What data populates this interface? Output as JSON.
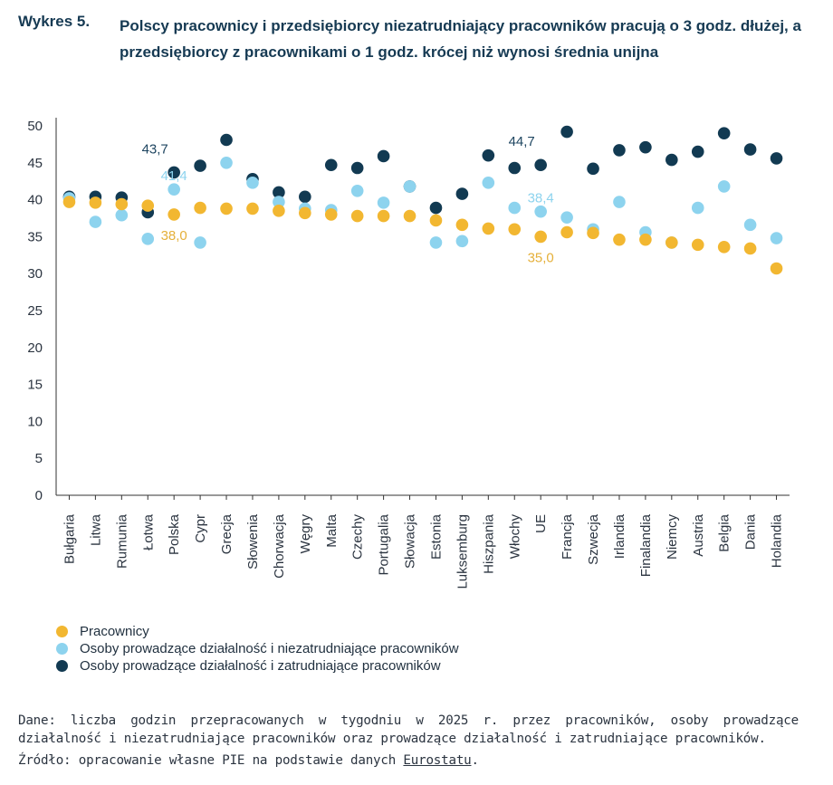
{
  "title": {
    "label": "Wykres 5.",
    "text": "Polscy pracownicy i przedsiębiorcy niezatrudniający pracowników pracują o 3 godz. dłużej, a przedsiębiorcy z pracownikami o 1 godz. krócej niż wynosi średnia unijna"
  },
  "chart_data": {
    "type": "scatter",
    "categories": [
      "Bułgaria",
      "Litwa",
      "Rumunia",
      "Łotwa",
      "Polska",
      "Cypr",
      "Grecja",
      "Słowenia",
      "Chorwacja",
      "Węgry",
      "Malta",
      "Czechy",
      "Portugalia",
      "Słowacja",
      "Estonia",
      "Luksemburg",
      "Hiszpania",
      "Włochy",
      "UE",
      "Francja",
      "Szwecja",
      "Irlandia",
      "Finalandia",
      "Niemcy",
      "Austria",
      "Belgia",
      "Dania",
      "Holandia"
    ],
    "ylim": [
      0,
      50
    ],
    "yticks": [
      0,
      5,
      10,
      15,
      20,
      25,
      30,
      35,
      40,
      45,
      50
    ],
    "grid": false,
    "legend_position": "bottom-left",
    "series": [
      {
        "name": "Pracownicy",
        "color": "#f2b731",
        "values": [
          39.7,
          39.6,
          39.4,
          39.2,
          38.0,
          38.9,
          38.8,
          38.8,
          38.5,
          38.2,
          38.0,
          37.8,
          37.8,
          37.8,
          37.2,
          36.6,
          36.1,
          36.0,
          35.0,
          35.6,
          35.5,
          34.6,
          34.6,
          34.2,
          33.9,
          33.6,
          33.4,
          30.7
        ]
      },
      {
        "name": "Osoby prowadzące działalność i niezatrudniające pracowników",
        "color": "#8dd3ee",
        "values": [
          40.2,
          37.0,
          37.9,
          34.7,
          41.4,
          34.2,
          45.0,
          42.3,
          39.7,
          38.8,
          38.6,
          41.2,
          39.6,
          41.8,
          34.2,
          34.4,
          42.3,
          38.9,
          38.4,
          37.6,
          36.0,
          39.7,
          35.6,
          34.2,
          38.9,
          41.8,
          36.6,
          34.8
        ]
      },
      {
        "name": "Osoby prowadzące działalność i zatrudniające pracowników",
        "color": "#123a52",
        "values": [
          40.4,
          40.4,
          40.3,
          38.3,
          43.7,
          44.6,
          48.1,
          42.8,
          41.0,
          40.4,
          44.7,
          44.3,
          45.9,
          41.8,
          38.9,
          40.8,
          46.0,
          44.3,
          44.7,
          49.2,
          44.2,
          46.7,
          47.1,
          45.4,
          46.5,
          49.0,
          46.8,
          45.6
        ]
      }
    ],
    "annotations": [
      {
        "series": 2,
        "category": "Polska",
        "text": "43,7",
        "color": "#1e4560"
      },
      {
        "series": 1,
        "category": "Polska",
        "text": "41,4",
        "color": "#8dd3ee"
      },
      {
        "series": 0,
        "category": "Polska",
        "text": "38,0",
        "color": "#e5b03a"
      },
      {
        "series": 2,
        "category": "UE",
        "text": "44,7",
        "color": "#1e4560"
      },
      {
        "series": 1,
        "category": "UE",
        "text": "38,4",
        "color": "#8dd3ee"
      },
      {
        "series": 0,
        "category": "UE",
        "text": "35,0",
        "color": "#e5b03a"
      }
    ]
  },
  "note": "Dane: liczba godzin przepracowanych w tygodniu w 2025 r. przez pracowników, osoby prowadzące działalność i niezatrudniające pracowników oraz prowadzące działalność i zatrudniające pracowników.",
  "source": {
    "prefix": "Źródło: opracowanie własne PIE na podstawie danych ",
    "link_text": "Eurostatu",
    "suffix": "."
  }
}
